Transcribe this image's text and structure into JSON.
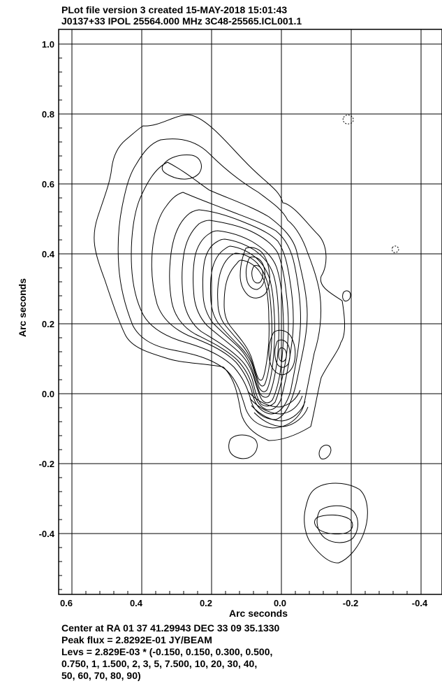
{
  "header": {
    "line1": "PLot file version 3  created 15-MAY-2018 15:01:43",
    "line2": "J0137+33  IPOL  25564.000 MHz  3C48-25565.ICL001.1"
  },
  "axes": {
    "xlabel": "Arc seconds",
    "ylabel": "Arc seconds",
    "x_ticks": [
      "0.6",
      "0.4",
      "0.2",
      "0.0",
      "-0.2",
      "-0.4"
    ],
    "y_ticks": [
      "1.0",
      "0.8",
      "0.6",
      "0.4",
      "0.2",
      "0.0",
      "-0.2",
      "-0.4"
    ]
  },
  "footer": {
    "center": "Center at RA 01 37 41.29943  DEC 33 09 35.1330",
    "peak": "Peak flux =  2.8292E-01 JY/BEAM",
    "levs1": "Levs = 2.829E-03 * (-0.150, 0.150, 0.300, 0.500,",
    "levs2": "0.750, 1, 1.500, 2, 3, 5, 7.500, 10, 20, 30, 40,",
    "levs3": "50, 60, 70, 80, 90)"
  },
  "colors": {
    "line": "#000000",
    "background": "#ffffff"
  }
}
